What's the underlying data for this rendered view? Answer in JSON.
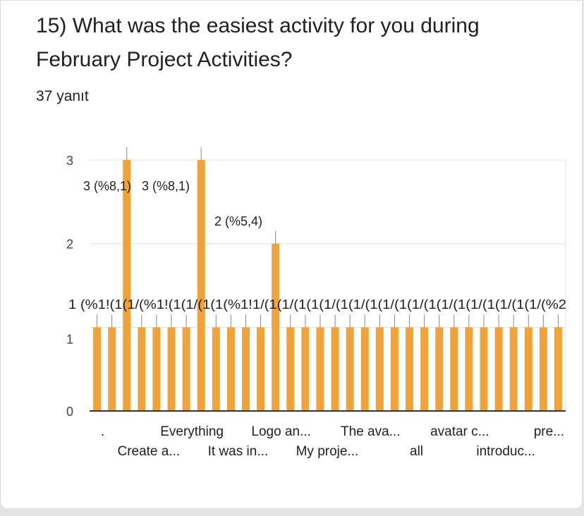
{
  "question": {
    "title": "15) What was the easiest activity for you during February Project Activities?",
    "response_count": "37 yanıt"
  },
  "colors": {
    "bar": "#f0a33b",
    "grid": "#e0e0e0",
    "axis": "#333333",
    "text": "#202124"
  },
  "chart_data": {
    "type": "bar",
    "title": "",
    "xlabel": "",
    "ylabel": "",
    "ylim": [
      0,
      3
    ],
    "yticks": [
      0,
      1,
      2,
      3
    ],
    "grid": true,
    "values": [
      1,
      1,
      3,
      1,
      1,
      1,
      1,
      3,
      1,
      1,
      1,
      1,
      2,
      1,
      1,
      1,
      1,
      1,
      1,
      1,
      1,
      1,
      1,
      1,
      1,
      1,
      1,
      1,
      1,
      1,
      1,
      1
    ],
    "data_labels": {
      "peak1": "3 (%8,1)",
      "peak2": "3 (%8,1)",
      "mid": "2 (%5,4)",
      "ones_row": "1 (%1!(1(1/(%1!(1(1/(1(1(%1!1/(1(1/(1(1(1/(1(1/(1(1/(1(1/(1(1/(1(1/(1(1/(1(1/(%2"
    },
    "x_tick_labels": [
      {
        "text": ".",
        "bar": 0,
        "row": 1
      },
      {
        "text": "Create a...",
        "bar": 3,
        "row": 2
      },
      {
        "text": "Everything",
        "bar": 6,
        "row": 1
      },
      {
        "text": "It was in...",
        "bar": 9,
        "row": 2
      },
      {
        "text": "Logo an...",
        "bar": 12,
        "row": 1
      },
      {
        "text": "My proje...",
        "bar": 15,
        "row": 2
      },
      {
        "text": "The ava...",
        "bar": 18,
        "row": 1
      },
      {
        "text": "all",
        "bar": 21,
        "row": 2
      },
      {
        "text": "avatar c...",
        "bar": 24,
        "row": 1
      },
      {
        "text": "introduc...",
        "bar": 27,
        "row": 2
      },
      {
        "text": "pre...",
        "bar": 30,
        "row": 1
      }
    ]
  }
}
